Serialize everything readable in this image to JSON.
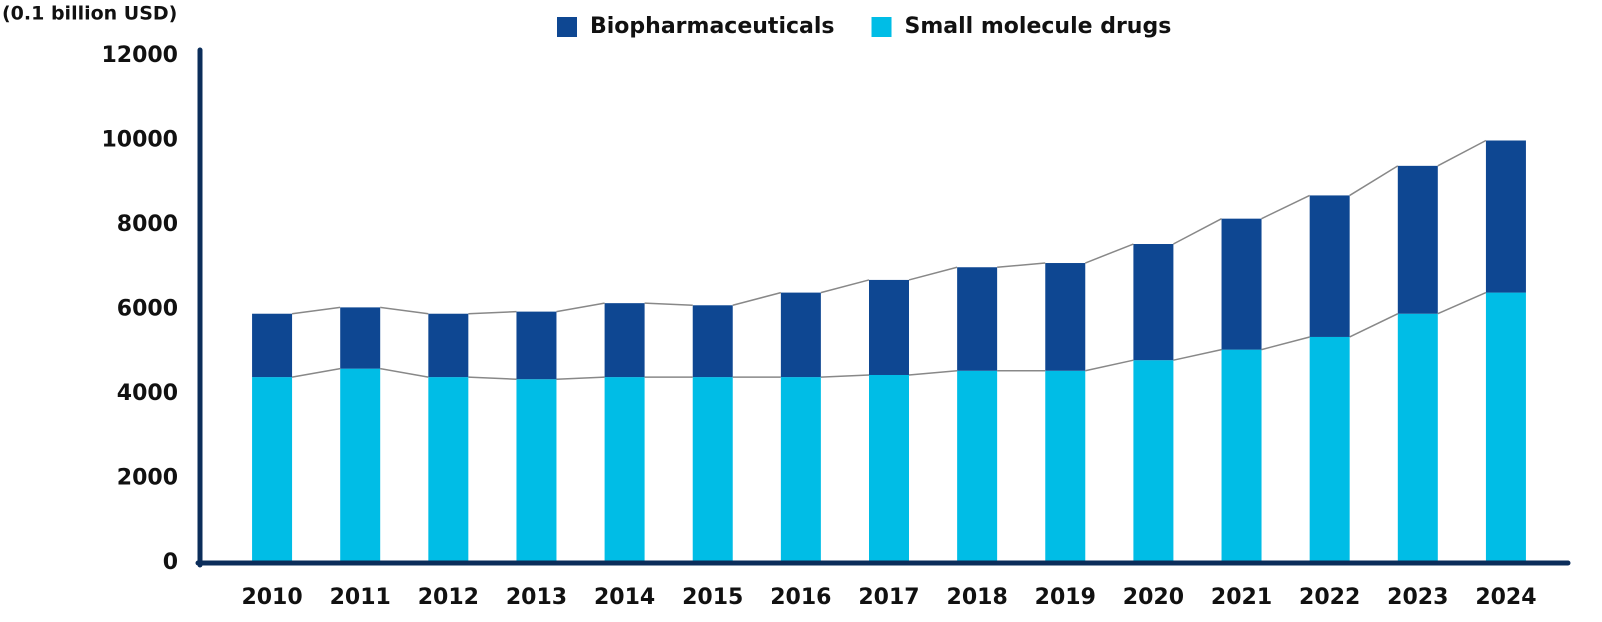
{
  "chart_data": {
    "type": "stacked-bar",
    "unit_label": "(0.1 billion USD)",
    "categories": [
      "2010",
      "2011",
      "2012",
      "2013",
      "2014",
      "2015",
      "2016",
      "2017",
      "2018",
      "2019",
      "2020",
      "2021",
      "2022",
      "2023",
      "2024"
    ],
    "series": [
      {
        "name": "Biopharmaceuticals",
        "color": "#0e4792",
        "values": [
          1500,
          1450,
          1500,
          1600,
          1750,
          1700,
          2000,
          2250,
          2450,
          2550,
          2750,
          3100,
          3350,
          3500,
          3600
        ]
      },
      {
        "name": "Small molecule drugs",
        "color": "#00bde6",
        "values": [
          4400,
          4600,
          4400,
          4350,
          4400,
          4400,
          4400,
          4450,
          4550,
          4550,
          4800,
          5050,
          5350,
          5900,
          6400
        ]
      }
    ],
    "stack_order": [
      1,
      0
    ],
    "ylim": [
      0,
      12000
    ],
    "yticks": [
      0,
      2000,
      4000,
      6000,
      8000,
      10000,
      12000
    ],
    "axis_color": "#0b2d5a",
    "connector_color": "#888888"
  }
}
